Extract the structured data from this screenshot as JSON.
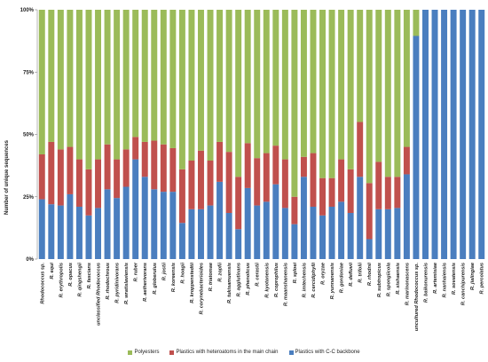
{
  "chart_data": {
    "type": "bar",
    "stacked": true,
    "ylabel": "Number of unique sequences",
    "xlabel": "",
    "ylim": [
      0,
      100
    ],
    "yticks": [
      "0%",
      "25%",
      "50%",
      "75%",
      "100%"
    ],
    "legend_position": "bottom",
    "grid": false,
    "categories": [
      "Rhodococcus sp.",
      "R. equi",
      "R. erythropolis",
      "R. opacus",
      "R. qingshengii",
      "R. fascians",
      "unclassified Rhodococcus",
      "R. rhodochrous",
      "R. pyridinivorans",
      "R. wratislaviensis",
      "R. ruber",
      "R. aetherivorans",
      "R. globerulus",
      "R. jostii",
      "R. koreensis",
      "R. hoagii",
      "R. kroppenstedtii",
      "R. corynebacterioides",
      "R. triatomae",
      "R. zopfii",
      "R. tukisamuensis",
      "R. agglutinans",
      "R. phenolicus",
      "R. cerastii",
      "R. kyotonensis",
      "R. coprophilus",
      "R. maanshanensis",
      "R. sploei",
      "R. imtechensis",
      "R. cercidiphylli",
      "R. oryzae",
      "R. yunnanensis",
      "R. gordoniae",
      "R. defluvii",
      "R. trifolii",
      "R. rhodnii",
      "R. subtropicus",
      "R. spongiicola",
      "R. xishaensis",
      "R. marinonascens",
      "uncultured Rhodococcus sp.",
      "R. baikonurensis",
      "R. artemisiae",
      "R. nanhaiensis",
      "R. sovatensis",
      "R. canchipurensis",
      "R. jialingiae",
      "R. percolatus"
    ],
    "series": [
      {
        "name": "Plastics with C-C backbone",
        "color": "#4a7ebf",
        "values": [
          24,
          22,
          21.5,
          26,
          21,
          17.5,
          20.5,
          28,
          24.5,
          29,
          40,
          33,
          28,
          27,
          27,
          14.5,
          20,
          20,
          21.5,
          31,
          18.5,
          12,
          28.5,
          21.5,
          23,
          30,
          20.5,
          14,
          33,
          21,
          17.5,
          21,
          23,
          18.5,
          33,
          8,
          20,
          20,
          20.5,
          34,
          89.5,
          100,
          100,
          100,
          100,
          100,
          100,
          100
        ]
      },
      {
        "name": "Plastics with heteroatoms in the main chain",
        "color": "#c0504d",
        "values": [
          18,
          25,
          22.5,
          19,
          19,
          18.5,
          19.5,
          18,
          15.5,
          15,
          9,
          14,
          19.5,
          19,
          17.5,
          21.5,
          19.5,
          23.5,
          18,
          16,
          24.5,
          21,
          18,
          19,
          19.5,
          15.5,
          19.5,
          11,
          8,
          21.5,
          15,
          11.5,
          17,
          17.5,
          22,
          22.5,
          19,
          13,
          12.5,
          11,
          0,
          0,
          0,
          0,
          0,
          0,
          0,
          0
        ]
      },
      {
        "name": "Polyesters",
        "color": "#9bbb59",
        "values": [
          58,
          53,
          56,
          55,
          60,
          64,
          60,
          54,
          60,
          56,
          51,
          53,
          52.5,
          54,
          55.5,
          64,
          60.5,
          56.5,
          60.5,
          53,
          57,
          67,
          53.5,
          59.5,
          57.5,
          54.5,
          60,
          75,
          59,
          57.5,
          67.5,
          67.5,
          60,
          64,
          45,
          69.5,
          61,
          67,
          67,
          55,
          10.5,
          0,
          0,
          0,
          0,
          0,
          0,
          0
        ]
      }
    ]
  }
}
